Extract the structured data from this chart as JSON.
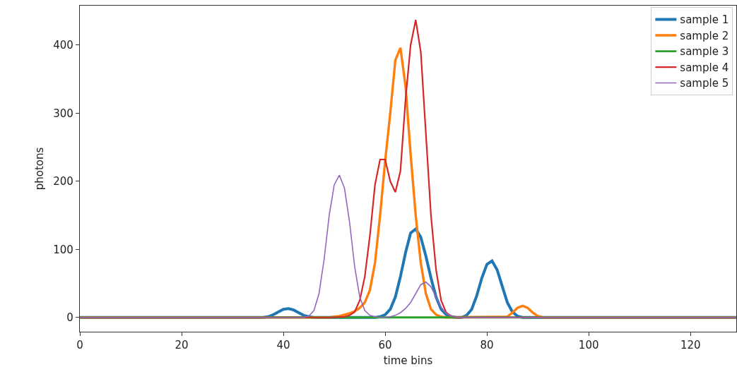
{
  "chart_data": {
    "type": "line",
    "xlabel": "time bins",
    "ylabel": "photons",
    "xlim": [
      0,
      129
    ],
    "ylim": [
      -21,
      458
    ],
    "xticks": [
      0,
      20,
      40,
      60,
      80,
      100,
      120
    ],
    "yticks": [
      0,
      100,
      200,
      300,
      400
    ],
    "grid": false,
    "legend": "top right",
    "series": [
      {
        "name": "sample 1",
        "color": "#1f77b4",
        "x": [
          0,
          36,
          37,
          38,
          39,
          40,
          41,
          42,
          43,
          44,
          45,
          46,
          58,
          59,
          60,
          61,
          62,
          63,
          64,
          65,
          66,
          67,
          68,
          69,
          70,
          71,
          72,
          73,
          74,
          75,
          76,
          77,
          78,
          79,
          80,
          81,
          82,
          83,
          84,
          85,
          86,
          87,
          129
        ],
        "values": [
          0,
          0,
          1,
          4,
          8,
          12,
          13,
          11,
          7,
          3,
          1,
          0,
          0,
          1,
          4,
          12,
          30,
          60,
          95,
          124,
          130,
          118,
          90,
          58,
          30,
          12,
          4,
          1,
          0,
          0,
          3,
          12,
          32,
          58,
          78,
          83,
          70,
          46,
          22,
          8,
          2,
          0,
          0
        ]
      },
      {
        "name": "sample 2",
        "color": "#ff7f0e",
        "x": [
          0,
          49,
          50,
          51,
          52,
          53,
          54,
          55,
          56,
          57,
          58,
          59,
          60,
          61,
          62,
          63,
          64,
          65,
          66,
          67,
          68,
          69,
          70,
          71,
          72,
          84,
          85,
          86,
          87,
          88,
          89,
          90,
          91,
          129
        ],
        "values": [
          0,
          0,
          1,
          2,
          4,
          6,
          9,
          14,
          22,
          40,
          80,
          150,
          230,
          300,
          378,
          396,
          340,
          240,
          150,
          80,
          35,
          12,
          4,
          1,
          0,
          1,
          7,
          14,
          17,
          14,
          7,
          2,
          0,
          0
        ]
      },
      {
        "name": "sample 3",
        "color": "#2ca02c",
        "x": [
          0,
          129
        ],
        "values": [
          0,
          0
        ]
      },
      {
        "name": "sample 4",
        "color": "#d62728",
        "x": [
          0,
          50,
          52,
          53,
          54,
          55,
          56,
          57,
          58,
          59,
          60,
          61,
          62,
          63,
          64,
          65,
          66,
          67,
          68,
          69,
          70,
          71,
          72,
          73,
          74,
          129
        ],
        "values": [
          0,
          0,
          1,
          3,
          8,
          25,
          60,
          120,
          195,
          232,
          232,
          200,
          184,
          215,
          320,
          400,
          437,
          390,
          270,
          150,
          70,
          25,
          7,
          2,
          0,
          0
        ]
      },
      {
        "name": "sample 5",
        "color": "#9467bd",
        "x": [
          0,
          44,
          45,
          46,
          47,
          48,
          49,
          50,
          51,
          52,
          53,
          54,
          55,
          56,
          57,
          58,
          59,
          60,
          61,
          62,
          63,
          64,
          65,
          66,
          67,
          68,
          69,
          70,
          71,
          72,
          73,
          74,
          129
        ],
        "values": [
          0,
          0,
          2,
          10,
          35,
          85,
          150,
          195,
          209,
          190,
          140,
          75,
          30,
          10,
          3,
          1,
          0,
          0,
          1,
          3,
          7,
          13,
          22,
          35,
          48,
          52,
          45,
          30,
          15,
          6,
          2,
          0,
          0
        ]
      }
    ]
  }
}
